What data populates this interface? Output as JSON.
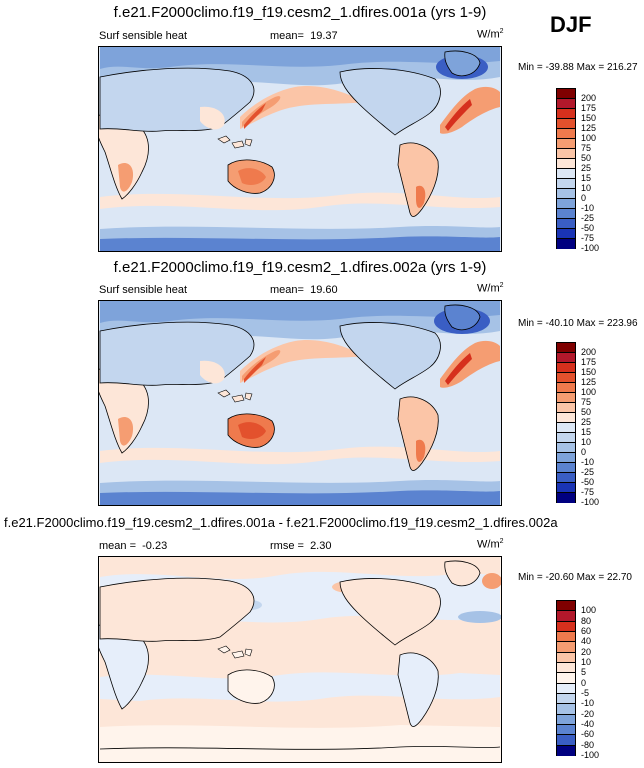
{
  "season": "DJF",
  "chart_data": [
    {
      "type": "heatmap",
      "title": "f.e21.F2000climo.f19_f19.cesm2_1.dfires.001a (yrs 1-9)",
      "variable": "Surf sensible heat",
      "mean_label": "mean=",
      "mean": "19.37",
      "units": "W/m",
      "units_sup": "2",
      "min_label": "Min =",
      "min": "-39.88",
      "max_label": "Max =",
      "max": "216.27",
      "colorbar_levels": [
        "200",
        "175",
        "150",
        "125",
        "100",
        "75",
        "50",
        "25",
        "15",
        "10",
        "0",
        "-10",
        "-25",
        "-50",
        "-75",
        "-100"
      ]
    },
    {
      "type": "heatmap",
      "title": "f.e21.F2000climo.f19_f19.cesm2_1.dfires.002a (yrs 1-9)",
      "variable": "Surf sensible heat",
      "mean_label": "mean=",
      "mean": "19.60",
      "units": "W/m",
      "units_sup": "2",
      "min_label": "Min =",
      "min": "-40.10",
      "max_label": "Max =",
      "max": "223.96",
      "colorbar_levels": [
        "200",
        "175",
        "150",
        "125",
        "100",
        "75",
        "50",
        "25",
        "15",
        "10",
        "0",
        "-10",
        "-25",
        "-50",
        "-75",
        "-100"
      ]
    },
    {
      "type": "heatmap",
      "title": "f.e21.F2000climo.f19_f19.cesm2_1.dfires.001a - f.e21.F2000climo.f19_f19.cesm2_1.dfires.002a",
      "mean_label": "mean =",
      "mean": "-0.23",
      "rmse_label": "rmse =",
      "rmse": "2.30",
      "units": "W/m",
      "units_sup": "2",
      "min_label": "Min =",
      "min": "-20.60",
      "max_label": "Max =",
      "max": "22.70",
      "colorbar_levels": [
        "100",
        "80",
        "60",
        "40",
        "20",
        "10",
        "5",
        "0",
        "-5",
        "-10",
        "-20",
        "-40",
        "-60",
        "-80",
        "-100"
      ]
    }
  ],
  "colors": {
    "abs_scale": [
      "#7f0000",
      "#b2182b",
      "#d6301d",
      "#e3512d",
      "#ef7a4d",
      "#f59d72",
      "#fbc5a7",
      "#fde6d8",
      "#dce7f5",
      "#c3d6ee",
      "#a6c2e6",
      "#7ea3da",
      "#5b83d0",
      "#3a5ec4",
      "#1a34b5",
      "#000080"
    ],
    "diff_scale": [
      "#7f0000",
      "#b2182b",
      "#d6301d",
      "#ef7a4d",
      "#f59d72",
      "#fbc5a7",
      "#fde6d8",
      "#fff4ec",
      "#e6eefa",
      "#c3d6ee",
      "#a6c2e6",
      "#7ea3da",
      "#5b83d0",
      "#3a5ec4",
      "#000080"
    ]
  }
}
